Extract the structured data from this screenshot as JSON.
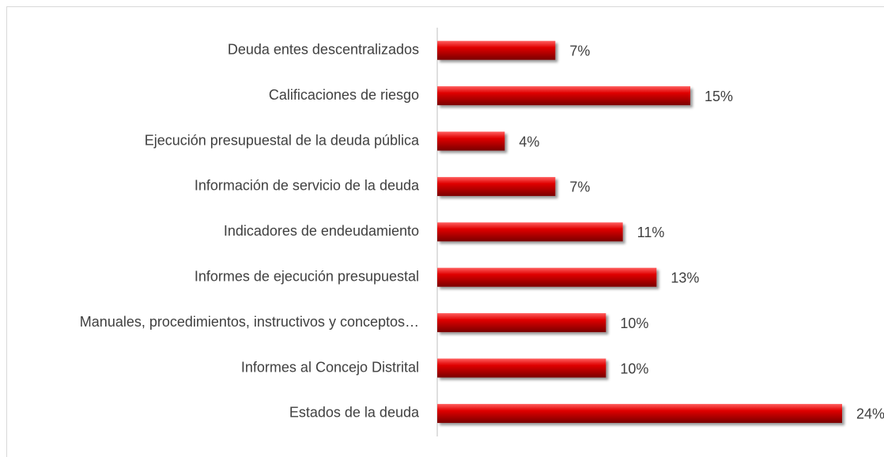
{
  "chart_data": {
    "type": "bar",
    "orientation": "horizontal",
    "categories": [
      "Deuda entes descentralizados",
      "Calificaciones de riesgo",
      "Ejecución presupuestal de la deuda pública",
      "Información de servicio de la deuda",
      "Indicadores de endeudamiento",
      "Informes de ejecución presupuestal",
      "Manuales, procedimientos, instructivos y conceptos…",
      "Informes al Concejo Distrital",
      "Estados de la deuda"
    ],
    "values": [
      7,
      15,
      4,
      7,
      11,
      13,
      10,
      10,
      24
    ],
    "value_labels": [
      "7%",
      "15%",
      "4%",
      "7%",
      "11%",
      "13%",
      "10%",
      "10%",
      "24%"
    ],
    "color": "#e00000"
  }
}
